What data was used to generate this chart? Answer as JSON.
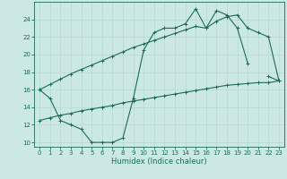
{
  "xlabel": "Humidex (Indice chaleur)",
  "x": [
    0,
    1,
    2,
    3,
    4,
    5,
    6,
    7,
    8,
    9,
    10,
    11,
    12,
    13,
    14,
    15,
    16,
    17,
    18,
    19,
    20,
    21,
    22,
    23
  ],
  "line_main": [
    16.0,
    15.0,
    12.5,
    12.0,
    11.5,
    10.0,
    10.0,
    10.0,
    10.5,
    15.0,
    20.5,
    22.5,
    23.0,
    23.0,
    23.5,
    25.2,
    23.0,
    25.0,
    24.5,
    23.0,
    19.0,
    null,
    17.5,
    17.0
  ],
  "line_upper": [
    16.0,
    16.6,
    17.2,
    17.8,
    18.3,
    18.8,
    19.3,
    19.8,
    20.3,
    20.8,
    21.2,
    21.6,
    22.0,
    22.4,
    22.8,
    23.2,
    23.0,
    23.8,
    24.3,
    24.5,
    23.0,
    22.5,
    22.0,
    17.0
  ],
  "line_lower": [
    12.5,
    12.8,
    13.1,
    13.3,
    13.6,
    13.8,
    14.0,
    14.2,
    14.5,
    14.7,
    14.9,
    15.1,
    15.3,
    15.5,
    15.7,
    15.9,
    16.1,
    16.3,
    16.5,
    16.6,
    16.7,
    16.8,
    16.8,
    17.0
  ],
  "color": "#1a6b5a",
  "bg_color": "#cce8e5",
  "grid_color": "#b8dbd8",
  "ylim": [
    9.5,
    26.0
  ],
  "yticks": [
    10,
    12,
    14,
    16,
    18,
    20,
    22,
    24
  ],
  "xlim": [
    -0.5,
    23.5
  ],
  "xticks": [
    0,
    1,
    2,
    3,
    4,
    5,
    6,
    7,
    8,
    9,
    10,
    11,
    12,
    13,
    14,
    15,
    16,
    17,
    18,
    19,
    20,
    21,
    22,
    23
  ],
  "tick_fontsize": 5.0,
  "xlabel_fontsize": 6.0
}
